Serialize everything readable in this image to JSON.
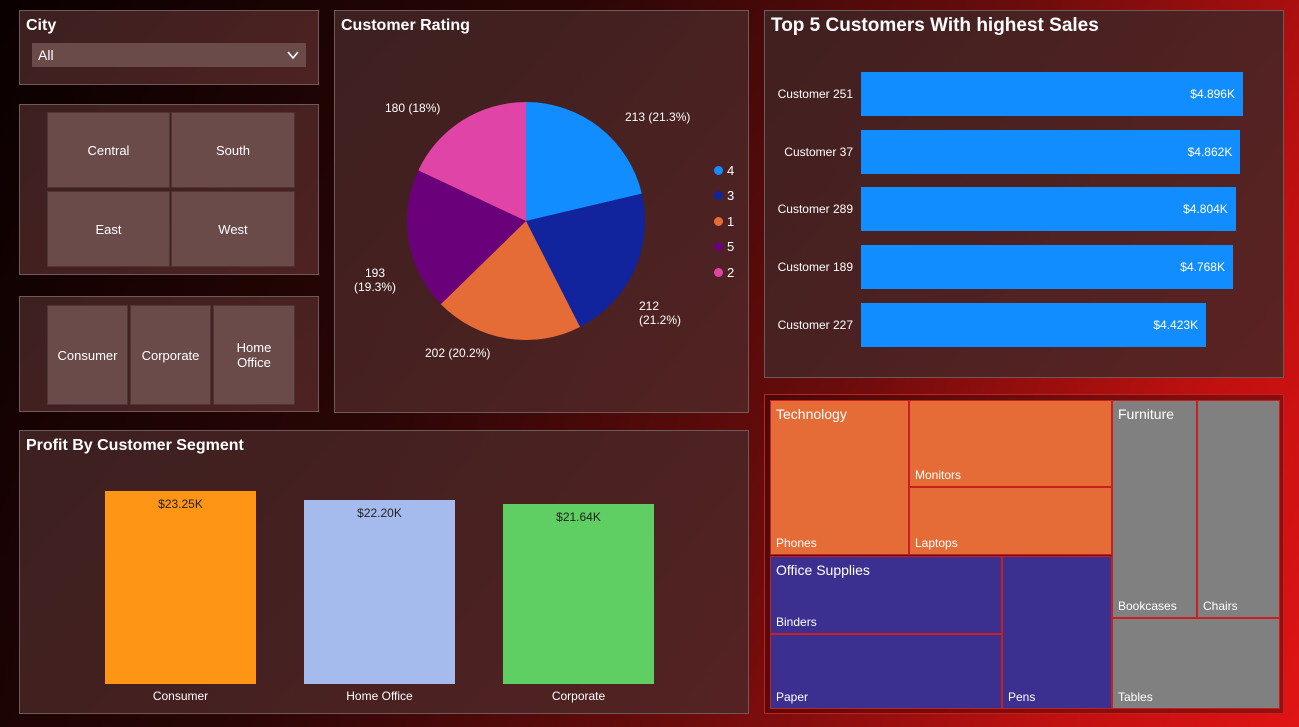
{
  "city_slicer": {
    "title": "City",
    "selected": "All"
  },
  "region_slicer": {
    "items": [
      "Central",
      "South",
      "East",
      "West"
    ]
  },
  "segment_slicer": {
    "items": [
      "Consumer",
      "Corporate",
      "Home Office"
    ]
  },
  "customer_rating": {
    "title": "Customer Rating",
    "legend": [
      "4",
      "3",
      "1",
      "5",
      "2"
    ],
    "labels": [
      "213 (21.3%)",
      "212 (21.2%)",
      "202 (20.2%)",
      "193 (19.3%)",
      "180 (18%)"
    ],
    "chart_data": {
      "type": "pie",
      "categories": [
        "4",
        "3",
        "1",
        "5",
        "2"
      ],
      "values": [
        213,
        212,
        202,
        193,
        180
      ],
      "colors": [
        "#118dff",
        "#12239e",
        "#e66c37",
        "#6b007b",
        "#e044a7"
      ]
    }
  },
  "top_customers": {
    "title": "Top 5 Customers With highest Sales",
    "rows": [
      {
        "name": "Customer 251",
        "label": "$4.896K",
        "value": 4896
      },
      {
        "name": "Customer 37",
        "label": "$4.862K",
        "value": 4862
      },
      {
        "name": "Customer 289",
        "label": "$4.804K",
        "value": 4804
      },
      {
        "name": "Customer 189",
        "label": "$4.768K",
        "value": 4768
      },
      {
        "name": "Customer 227",
        "label": "$4.423K",
        "value": 4423
      }
    ],
    "chart_data": {
      "type": "bar",
      "categories": [
        "Customer 251",
        "Customer 37",
        "Customer 289",
        "Customer 189",
        "Customer 227"
      ],
      "values": [
        4896,
        4862,
        4804,
        4768,
        4423
      ]
    }
  },
  "profit_segment": {
    "title": "Profit By Customer Segment",
    "bars": [
      {
        "category": "Consumer",
        "label": "$23.25K",
        "value": 23250,
        "color": "#ff9515"
      },
      {
        "category": "Home Office",
        "label": "$22.20K",
        "value": 22200,
        "color": "#a6bbed"
      },
      {
        "category": "Corporate",
        "label": "$21.64K",
        "value": 21640,
        "color": "#5fce63"
      }
    ],
    "chart_data": {
      "type": "bar",
      "categories": [
        "Consumer",
        "Home Office",
        "Corporate"
      ],
      "values": [
        23250,
        22200,
        21640
      ]
    }
  },
  "treemap": {
    "groups": {
      "technology": {
        "name": "Technology",
        "color": "#e66c37",
        "items": [
          "Phones",
          "Monitors",
          "Laptops"
        ]
      },
      "office": {
        "name": "Office Supplies",
        "color": "#3b308f",
        "items": [
          "Binders",
          "Paper",
          "Pens"
        ]
      },
      "furniture": {
        "name": "Furniture",
        "color": "#808080",
        "items": [
          "Bookcases",
          "Chairs",
          "Tables"
        ]
      }
    }
  }
}
